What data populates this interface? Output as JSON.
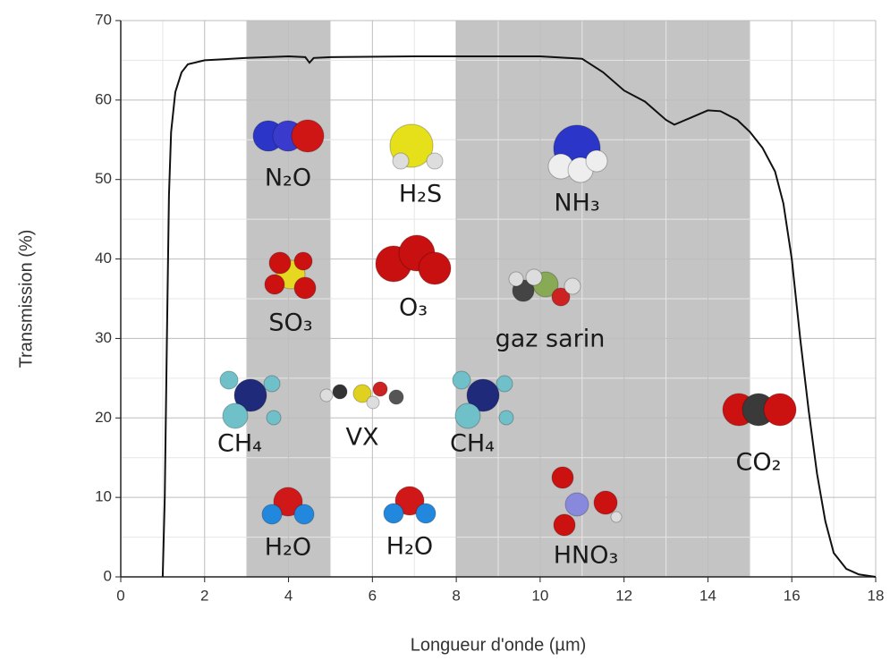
{
  "chart_data": {
    "type": "line",
    "xlabel": "Longueur d'onde (µm)",
    "ylabel": "Transmission (%)",
    "xlim": [
      0,
      18
    ],
    "ylim": [
      0,
      70
    ],
    "xticks": [
      0,
      2,
      4,
      6,
      8,
      10,
      12,
      14,
      16,
      18
    ],
    "yticks": [
      0,
      10,
      20,
      30,
      40,
      50,
      60,
      70
    ],
    "xminorticks": [
      1,
      3,
      5,
      7,
      9,
      11,
      13,
      15,
      17
    ],
    "yminorticks": [
      5,
      15,
      25,
      35,
      45,
      55,
      65
    ],
    "grid": true,
    "bands": [
      [
        3,
        5
      ],
      [
        8,
        15
      ]
    ],
    "band_color": "#c4c4c4",
    "series": [
      {
        "name": "Transmission",
        "color": "#111111",
        "x": [
          1.0,
          1.05,
          1.1,
          1.15,
          1.2,
          1.3,
          1.45,
          1.6,
          2.0,
          3.0,
          4.0,
          4.4,
          4.5,
          4.6,
          5.0,
          7.0,
          9.0,
          10.0,
          11.0,
          11.5,
          12.0,
          12.5,
          13.0,
          13.2,
          13.6,
          14.0,
          14.3,
          14.7,
          15.0,
          15.3,
          15.6,
          15.8,
          16.0,
          16.2,
          16.4,
          16.6,
          16.8,
          17.0,
          17.3,
          17.6,
          18.0
        ],
        "values": [
          0,
          10,
          30,
          48,
          56,
          61,
          63.5,
          64.5,
          65,
          65.3,
          65.5,
          65.4,
          64.7,
          65.3,
          65.4,
          65.5,
          65.5,
          65.5,
          65.2,
          63.5,
          61.2,
          59.8,
          57.5,
          56.9,
          57.8,
          58.7,
          58.6,
          57.5,
          56,
          54,
          51,
          47,
          40,
          30,
          21,
          13,
          7,
          3,
          1,
          0.3,
          0
        ]
      }
    ],
    "annotations": [
      "N₂O",
      "H₂S",
      "NH₃",
      "SO₃",
      "O₃",
      "gaz sarin",
      "CH₄",
      "VX",
      "CH₄",
      "CO₂",
      "H₂O",
      "H₂O",
      "HNO₃"
    ]
  }
}
